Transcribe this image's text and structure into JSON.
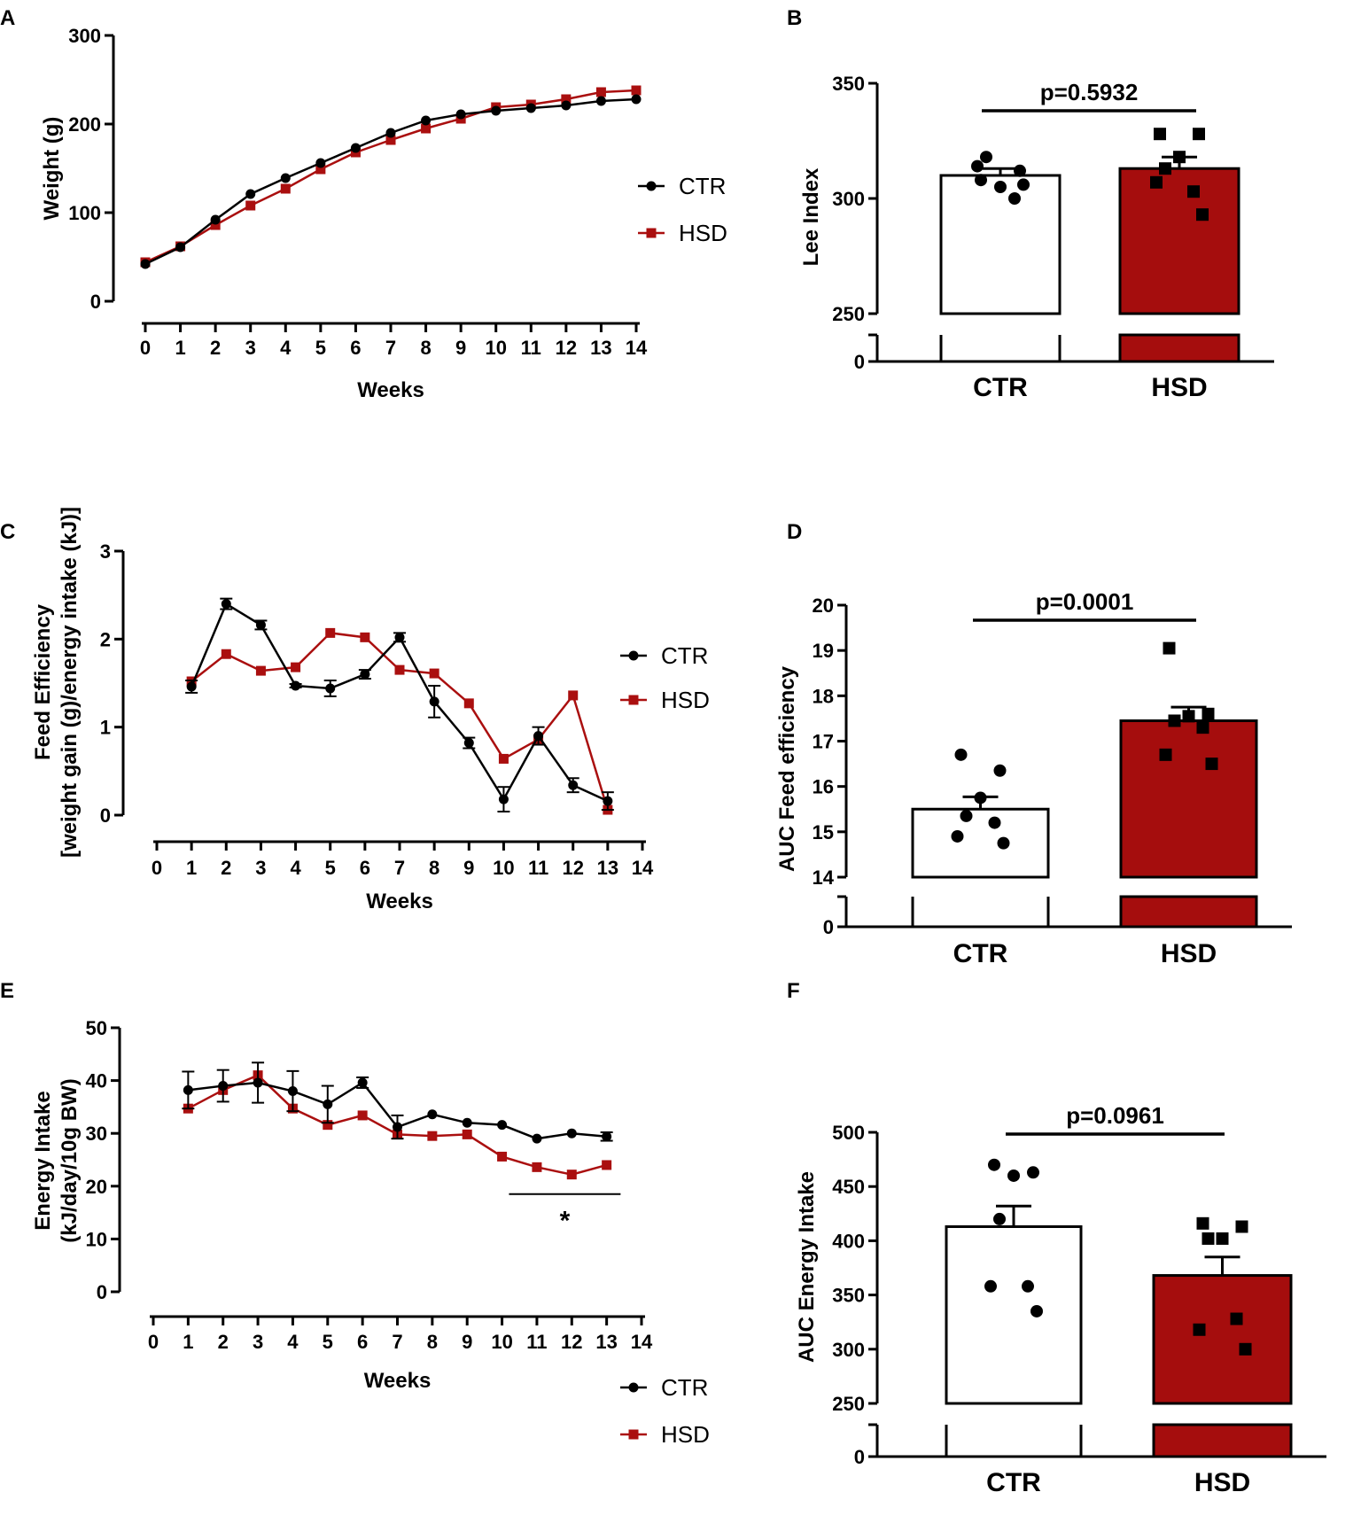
{
  "colors": {
    "ctr": "#000000",
    "hsd": "#aa0f0f",
    "bar_ctr": "#ffffff",
    "bar_hsd": "#a50d0d"
  },
  "chart_data": [
    {
      "id": "A",
      "letter": "A",
      "type": "line",
      "xlabel": "Weeks",
      "ylabel": "Weight (g)",
      "xticks": [
        "0",
        "1",
        "2",
        "3",
        "4",
        "5",
        "6",
        "7",
        "8",
        "9",
        "10",
        "11",
        "12",
        "13",
        "14"
      ],
      "yticks": [
        "0",
        "100",
        "200",
        "300"
      ],
      "ylim": [
        0,
        300
      ],
      "xlim": [
        0,
        14
      ],
      "legend": [
        "CTR",
        "HSD"
      ],
      "series": [
        {
          "name": "CTR",
          "x": [
            0,
            1,
            2,
            3,
            4,
            5,
            6,
            7,
            8,
            9,
            10,
            11,
            12,
            13,
            14
          ],
          "values": [
            42,
            61,
            92,
            121,
            139,
            156,
            173,
            190,
            204,
            211,
            215,
            218,
            221,
            226,
            228
          ],
          "err": []
        },
        {
          "name": "HSD",
          "x": [
            0,
            1,
            2,
            3,
            4,
            5,
            6,
            7,
            8,
            9,
            10,
            11,
            12,
            13,
            14
          ],
          "values": [
            44,
            62,
            86,
            108,
            127,
            149,
            168,
            182,
            195,
            206,
            219,
            222,
            228,
            236,
            238
          ],
          "err": []
        }
      ]
    },
    {
      "id": "B",
      "letter": "B",
      "type": "bar",
      "ylabel": "Lee Index",
      "categories": [
        "CTR",
        "HSD"
      ],
      "values": [
        310,
        313
      ],
      "sem": [
        3,
        5
      ],
      "ylim_upper": [
        250,
        350
      ],
      "yticks_upper": [
        "250",
        "300",
        "350"
      ],
      "ytick_lower": "0",
      "pvalue": "p=0.5932",
      "points": [
        [
          308,
          312,
          305,
          318,
          300,
          314,
          306
        ],
        [
          328,
          328,
          318,
          313,
          303,
          307,
          293
        ]
      ]
    },
    {
      "id": "C",
      "letter": "C",
      "type": "line",
      "xlabel": "Weeks",
      "ylabel": "Feed Efficiency",
      "ylabel2": "[weight gain (g)/energy intake (kJ)]",
      "xticks": [
        "0",
        "1",
        "2",
        "3",
        "4",
        "5",
        "6",
        "7",
        "8",
        "9",
        "10",
        "11",
        "12",
        "13",
        "14"
      ],
      "yticks": [
        "0",
        "1",
        "2",
        "3"
      ],
      "ylim": [
        0,
        3
      ],
      "xlim": [
        0,
        14
      ],
      "legend": [
        "CTR",
        "HSD"
      ],
      "series": [
        {
          "name": "CTR",
          "x": [
            1,
            2,
            3,
            4,
            5,
            6,
            7,
            8,
            9,
            10,
            11,
            12,
            13
          ],
          "values": [
            1.46,
            2.4,
            2.16,
            1.47,
            1.44,
            1.6,
            2.02,
            1.29,
            0.82,
            0.18,
            0.9,
            0.34,
            0.16
          ],
          "err": [
            0.07,
            0.06,
            0.05,
            0.02,
            0.09,
            0.05,
            0.05,
            0.18,
            0.06,
            0.14,
            0.1,
            0.08,
            0.1
          ]
        },
        {
          "name": "HSD",
          "x": [
            1,
            2,
            3,
            4,
            5,
            6,
            7,
            8,
            9,
            10,
            11,
            12,
            13
          ],
          "values": [
            1.52,
            1.83,
            1.64,
            1.68,
            2.07,
            2.02,
            1.65,
            1.61,
            1.27,
            0.64,
            0.86,
            1.36,
            0.06
          ],
          "err": []
        }
      ]
    },
    {
      "id": "D",
      "letter": "D",
      "type": "bar",
      "ylabel": "AUC Feed efficiency",
      "categories": [
        "CTR",
        "HSD"
      ],
      "values": [
        15.5,
        17.45
      ],
      "sem": [
        0.27,
        0.3
      ],
      "ylim_upper": [
        14,
        20
      ],
      "yticks_upper": [
        "14",
        "15",
        "16",
        "17",
        "18",
        "19",
        "20"
      ],
      "ytick_lower": "0",
      "pvalue": "p=0.0001",
      "points": [
        [
          16.7,
          16.35,
          15.75,
          15.35,
          15.2,
          14.9,
          14.75
        ],
        [
          19.05,
          17.6,
          17.55,
          17.45,
          17.3,
          16.7,
          16.5
        ]
      ]
    },
    {
      "id": "E",
      "letter": "E",
      "type": "line",
      "xlabel": "Weeks",
      "ylabel": "Energy Intake",
      "ylabel2": "(kJ/day/10g BW)",
      "xticks": [
        "0",
        "1",
        "2",
        "3",
        "4",
        "5",
        "6",
        "7",
        "8",
        "9",
        "10",
        "11",
        "12",
        "13",
        "14"
      ],
      "yticks": [
        "0",
        "10",
        "20",
        "30",
        "40",
        "50"
      ],
      "ylim": [
        0,
        50
      ],
      "xlim": [
        0,
        14
      ],
      "legend": [
        "CTR",
        "HSD"
      ],
      "significance": "*",
      "significance_range": [
        10.2,
        13.4
      ],
      "series": [
        {
          "name": "CTR",
          "x": [
            1,
            2,
            3,
            4,
            5,
            6,
            7,
            8,
            9,
            10,
            11,
            12,
            13
          ],
          "values": [
            38.2,
            39.0,
            39.6,
            38.0,
            35.5,
            39.6,
            31.2,
            33.6,
            32.0,
            31.6,
            29.0,
            30.0,
            29.4
          ],
          "err": [
            3.5,
            3.0,
            3.8,
            3.8,
            3.5,
            1.0,
            2.2,
            0,
            0,
            0,
            0,
            0,
            0.8
          ]
        },
        {
          "name": "HSD",
          "x": [
            1,
            2,
            3,
            4,
            5,
            6,
            7,
            8,
            9,
            10,
            11,
            12,
            13
          ],
          "values": [
            34.7,
            38.2,
            41.0,
            34.7,
            31.6,
            33.4,
            29.8,
            29.5,
            29.8,
            25.6,
            23.6,
            22.2,
            24.0
          ],
          "err": []
        }
      ]
    },
    {
      "id": "F",
      "letter": "F",
      "type": "bar",
      "ylabel": "AUC Energy Intake",
      "categories": [
        "CTR",
        "HSD"
      ],
      "values": [
        413,
        368
      ],
      "sem": [
        19,
        17
      ],
      "ylim_upper": [
        250,
        500
      ],
      "yticks_upper": [
        "250",
        "300",
        "350",
        "400",
        "450",
        "500"
      ],
      "ytick_lower": "0",
      "pvalue": "p=0.0961",
      "points": [
        [
          470,
          463,
          460,
          420,
          358,
          358,
          335
        ],
        [
          416,
          413,
          402,
          402,
          328,
          318,
          300
        ]
      ]
    }
  ]
}
